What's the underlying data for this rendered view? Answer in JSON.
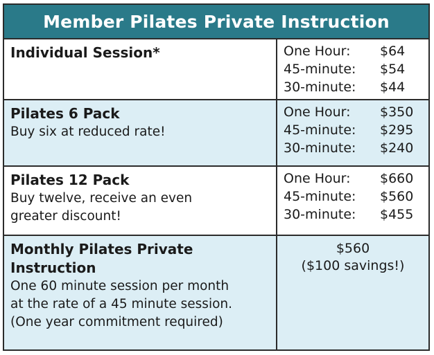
{
  "title": "Member Pilates Private Instruction",
  "rows": [
    {
      "name": "Individual Session*",
      "description": "",
      "prices": [
        {
          "label": "One Hour:",
          "value": "$64"
        },
        {
          "label": "45-minute:",
          "value": "$54"
        },
        {
          "label": "30-minute:",
          "value": "$44"
        }
      ]
    },
    {
      "name": "Pilates 6 Pack",
      "description": "Buy six at reduced rate!",
      "prices": [
        {
          "label": "One Hour:",
          "value": "$350"
        },
        {
          "label": "45-minute:",
          "value": "$295"
        },
        {
          "label": "30-minute:",
          "value": "$240"
        }
      ]
    },
    {
      "name": "Pilates 12 Pack",
      "description_lines": [
        "Buy twelve, receive an even",
        "greater discount!"
      ],
      "prices": [
        {
          "label": "One Hour:",
          "value": "$660"
        },
        {
          "label": "45-minute:",
          "value": "$560"
        },
        {
          "label": "30-minute:",
          "value": "$455"
        }
      ]
    },
    {
      "name_lines": [
        "Monthly Pilates Private",
        "Instruction"
      ],
      "description_lines": [
        "One 60 minute session per month",
        "at the rate of a 45 minute session.",
        "(One year commitment required)"
      ],
      "price": "$560",
      "savings": "($100 savings!)"
    }
  ],
  "colors": {
    "header_bg": "#2a7a89",
    "alt_row_bg": "#dceef5",
    "border": "#2b2b2b"
  }
}
